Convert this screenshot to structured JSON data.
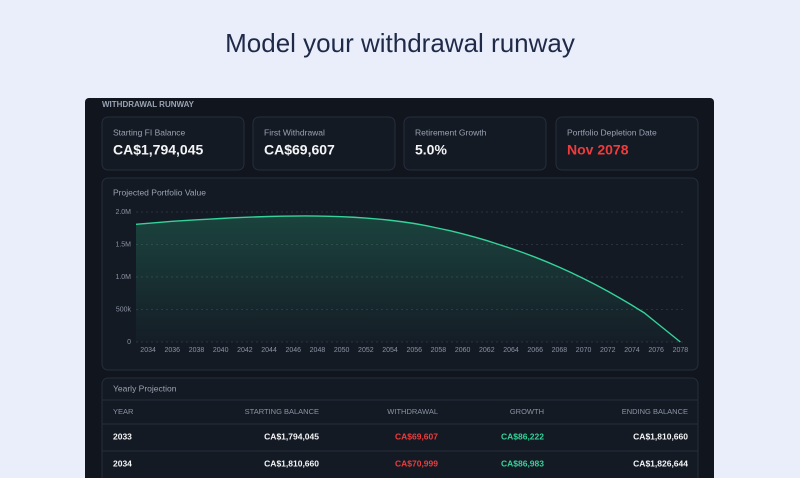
{
  "header": {
    "title": "Model your withdrawal runway"
  },
  "panel": {
    "title": "WITHDRAWAL RUNWAY"
  },
  "cards": [
    {
      "label": "Starting FI Balance",
      "value": "CA$1,794,045"
    },
    {
      "label": "First Withdrawal",
      "value": "CA$69,607"
    },
    {
      "label": "Retirement Growth",
      "value": "5.0%"
    },
    {
      "label": "Portfolio Depletion Date",
      "value": "Nov 2078"
    }
  ],
  "chart_data": {
    "type": "area",
    "title": "Projected Portfolio Value",
    "x": [
      2033,
      2034,
      2035,
      2036,
      2037,
      2038,
      2039,
      2040,
      2041,
      2042,
      2043,
      2044,
      2045,
      2046,
      2047,
      2048,
      2049,
      2050,
      2051,
      2052,
      2053,
      2054,
      2055,
      2056,
      2057,
      2058,
      2059,
      2060,
      2061,
      2062,
      2063,
      2064,
      2065,
      2066,
      2067,
      2068,
      2069,
      2070,
      2071,
      2072,
      2073,
      2074,
      2075,
      2076,
      2077,
      2078
    ],
    "series": [
      {
        "name": "Portfolio Value",
        "color": "#34d399",
        "values": [
          1810660,
          1826644,
          1842000,
          1856000,
          1868000,
          1880000,
          1890000,
          1900000,
          1910000,
          1918000,
          1925000,
          1931000,
          1935000,
          1938000,
          1939000,
          1938000,
          1934000,
          1928000,
          1919000,
          1907000,
          1892000,
          1873000,
          1850000,
          1823000,
          1790000,
          1750000,
          1710000,
          1665000,
          1615000,
          1560000,
          1500000,
          1440000,
          1375000,
          1305000,
          1230000,
          1150000,
          1065000,
          975000,
          880000,
          780000,
          675000,
          565000,
          450000,
          300000,
          150000,
          0
        ]
      }
    ],
    "xlim": [
      2033,
      2078.3
    ],
    "xticks": [
      2034,
      2036,
      2038,
      2040,
      2042,
      2044,
      2046,
      2048,
      2050,
      2052,
      2054,
      2056,
      2058,
      2060,
      2062,
      2064,
      2066,
      2068,
      2070,
      2072,
      2074,
      2076,
      2078
    ],
    "ylim": [
      0,
      2000000
    ],
    "yticks": [
      0,
      {
        "value": 500000,
        "label": "500k"
      },
      {
        "value": 1000000,
        "label": "1.0M"
      },
      {
        "value": 1500000,
        "label": "1.5M"
      },
      {
        "value": 2000000,
        "label": "2.0M"
      }
    ],
    "grid": true
  },
  "table": {
    "title": "Yearly Projection",
    "columns": [
      "YEAR",
      "STARTING BALANCE",
      "WITHDRAWAL",
      "GROWTH",
      "ENDING BALANCE"
    ],
    "rows": [
      [
        "2033",
        "CA$1,794,045",
        "CA$69,607",
        "CA$86,222",
        "CA$1,810,660"
      ],
      [
        "2034",
        "CA$1,810,660",
        "CA$70,999",
        "CA$86,983",
        "CA$1,826,644"
      ]
    ]
  }
}
